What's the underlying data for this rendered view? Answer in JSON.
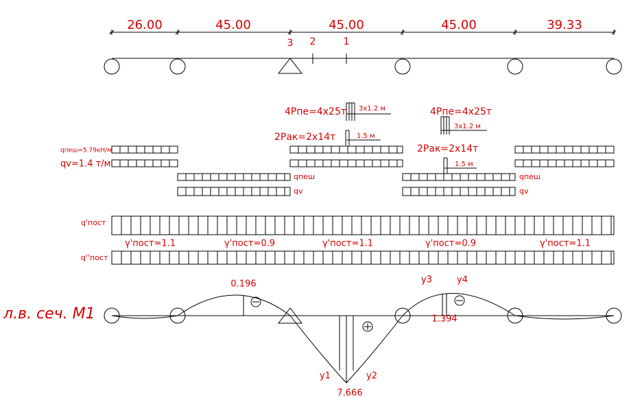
{
  "spans": [
    "26.00",
    "45.00",
    "45.00",
    "45.00",
    "39.33"
  ],
  "sections": [
    "3",
    "2",
    "1"
  ],
  "loads": [
    {
      "axle": "4Pпе=4x25т",
      "axle_spacing": "3x1.2 м",
      "tandem": "2Pак=2x14т",
      "tandem_spacing": "1.5 м"
    },
    {
      "axle": "4Pпе=4x25т",
      "axle_spacing": "3x1.2 м",
      "tandem": "2Pак=2x14т",
      "tandem_spacing": "1.5 м"
    }
  ],
  "strip_labels": {
    "q_ped_span": "qпеш=5.79кН/м",
    "qv_span": "qv=1.4 т/м",
    "q_ped_1": "qпеш",
    "qv_1": "qv",
    "q_ped_2": "qпеш",
    "qv_2": "qv",
    "q_perm_1": "q'пост",
    "q_perm_2": "q''пост"
  },
  "factors": [
    "γ'пост=1.1",
    "γ'пост=0.9",
    "γ'пост=1.1",
    "γ'пост=0.9",
    "γ'пост=1.1"
  ],
  "influence_line": {
    "title": "л.в. сеч. M1",
    "ordinates": [
      "0.196",
      "1.394",
      "7.666"
    ],
    "points": [
      "y1",
      "y2",
      "y3",
      "y4"
    ]
  }
}
